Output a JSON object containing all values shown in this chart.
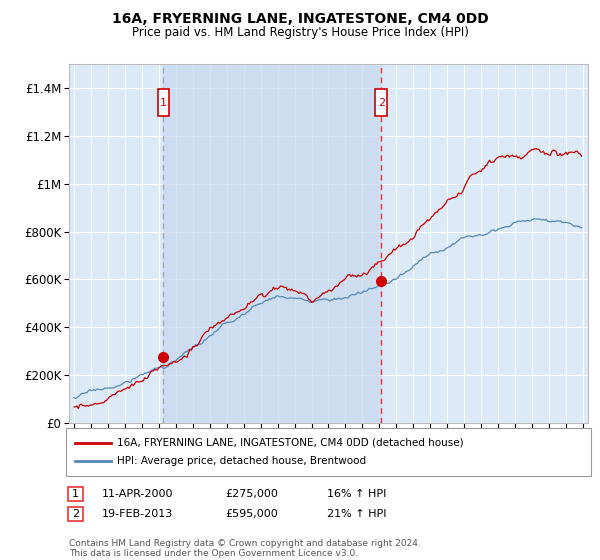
{
  "title": "16A, FRYERNING LANE, INGATESTONE, CM4 0DD",
  "subtitle": "Price paid vs. HM Land Registry's House Price Index (HPI)",
  "background_color": "#ffffff",
  "plot_bg_color": "#dce9f7",
  "grid_color": "#ffffff",
  "ylim": [
    0,
    1500000
  ],
  "yticks": [
    0,
    200000,
    400000,
    600000,
    800000,
    1000000,
    1200000,
    1400000
  ],
  "ytick_labels": [
    "£0",
    "£200K",
    "£400K",
    "£600K",
    "£800K",
    "£1M",
    "£1.2M",
    "£1.4M"
  ],
  "xlim_left": 1994.7,
  "xlim_right": 2025.3,
  "sale1_date": 2000.27,
  "sale1_price": 275000,
  "sale1_label": "1",
  "sale2_date": 2013.12,
  "sale2_price": 595000,
  "sale2_label": "2",
  "legend_line1": "16A, FRYERNING LANE, INGATESTONE, CM4 0DD (detached house)",
  "legend_line2": "HPI: Average price, detached house, Brentwood",
  "note1_label": "1",
  "note1_date": "11-APR-2000",
  "note1_price": "£275,000",
  "note1_hpi": "16% ↑ HPI",
  "note2_label": "2",
  "note2_date": "19-FEB-2013",
  "note2_price": "£595,000",
  "note2_hpi": "21% ↑ HPI",
  "footer": "Contains HM Land Registry data © Crown copyright and database right 2024.\nThis data is licensed under the Open Government Licence v3.0.",
  "line_color_red": "#cc0000",
  "line_color_blue": "#5588bb",
  "vline1_color": "#aaaaaa",
  "vline2_color": "#ee3333",
  "shade_color": "#c8d8ef"
}
